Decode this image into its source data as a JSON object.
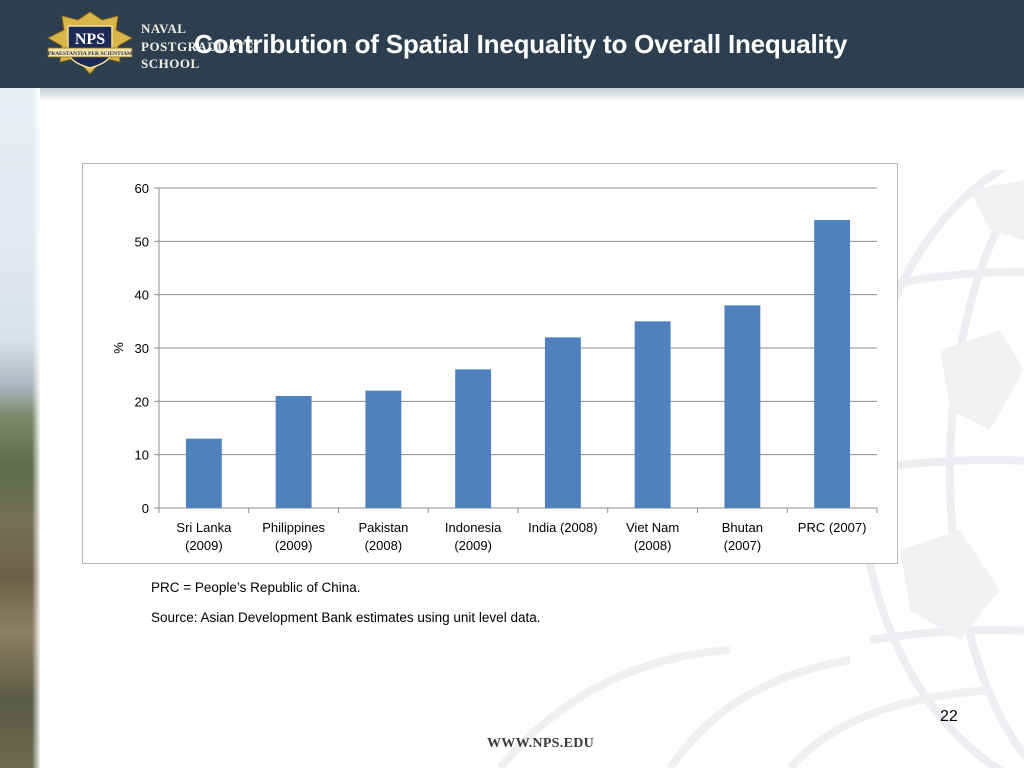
{
  "header": {
    "school_name_lines": [
      "NAVAL",
      "POSTGRADUATE",
      "SCHOOL"
    ],
    "crest_text": "NPS",
    "crest_motto": "PRAESTANTIA PER SCIENTIAM",
    "title": "Contribution of Spatial Inequality to Overall Inequality"
  },
  "chart_data": {
    "type": "bar",
    "title": "",
    "xlabel": "",
    "ylabel": "%",
    "ylim": [
      0,
      60
    ],
    "yticks": [
      0,
      10,
      20,
      30,
      40,
      50,
      60
    ],
    "grid": true,
    "legend": "none",
    "categories": [
      [
        "Sri Lanka",
        "(2009)"
      ],
      [
        "Philippines",
        "(2009)"
      ],
      [
        "Pakistan",
        "(2008)"
      ],
      [
        "Indonesia",
        "(2009)"
      ],
      [
        "India (2008)",
        ""
      ],
      [
        "Viet Nam",
        "(2008)"
      ],
      [
        "Bhutan",
        "(2007)"
      ],
      [
        "PRC (2007)",
        ""
      ]
    ],
    "values": [
      13,
      21,
      22,
      26,
      32,
      35,
      38,
      54
    ],
    "bar_color": "#4f81bd"
  },
  "notes": {
    "prc": "PRC = People’s Republic of China.",
    "source": "Source: Asian Development Bank estimates using unit level data."
  },
  "footer": {
    "page_number": "22",
    "url": "WWW.NPS.EDU"
  }
}
